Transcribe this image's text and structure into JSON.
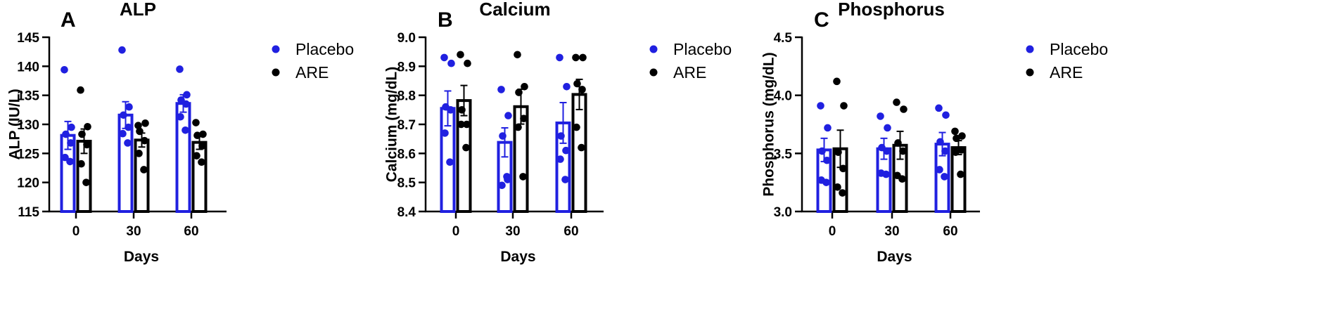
{
  "chart_data": [
    {
      "type": "bar",
      "panel": "A",
      "title": "ALP",
      "xlabel": "Days",
      "ylabel": "ALP (IU/L)",
      "categories": [
        "0",
        "30",
        "60"
      ],
      "ylim": [
        115,
        145
      ],
      "yticks": [
        "115",
        "120",
        "125",
        "130",
        "135",
        "140",
        "145"
      ],
      "grid": false,
      "legend_position": "right",
      "series": [
        {
          "name": "Placebo",
          "color": "#2020e0",
          "means": [
            128.1,
            131.6,
            133.6
          ],
          "sem": [
            2.4,
            2.3,
            1.5
          ],
          "points": [
            [
              139.4,
              129.5,
              128.3,
              126.8,
              124.3,
              123.6
            ],
            [
              142.8,
              133.0,
              131.6,
              129.5,
              128.4,
              126.8
            ],
            [
              139.5,
              135.1,
              134.2,
              133.5,
              131.3,
              129.0
            ]
          ]
        },
        {
          "name": "ARE",
          "color": "#000000",
          "means": [
            127.1,
            127.3,
            126.9
          ],
          "sem": [
            2.1,
            1.2,
            1.2
          ],
          "points": [
            [
              135.9,
              129.6,
              128.3,
              126.5,
              123.2,
              120.0
            ],
            [
              129.8,
              130.2,
              128.8,
              127.2,
              125.0,
              122.2
            ],
            [
              130.3,
              128.3,
              128.1,
              126.3,
              124.6,
              123.5
            ]
          ]
        }
      ]
    },
    {
      "type": "bar",
      "panel": "B",
      "title": "Calcium",
      "xlabel": "Days",
      "ylabel": "Calcium (mg/dL)",
      "categories": [
        "0",
        "30",
        "60"
      ],
      "ylim": [
        8.4,
        9.0
      ],
      "yticks": [
        "8.4",
        "8.5",
        "8.6",
        "8.7",
        "8.8",
        "8.9",
        "9.0"
      ],
      "grid": false,
      "legend_position": "right",
      "series": [
        {
          "name": "Placebo",
          "color": "#2020e0",
          "means": [
            8.755,
            8.638,
            8.705
          ],
          "sem": [
            0.06,
            0.05,
            0.07
          ],
          "points": [
            [
              8.93,
              8.91,
              8.76,
              8.75,
              8.67,
              8.57
            ],
            [
              8.82,
              8.73,
              8.66,
              8.51,
              8.49,
              8.52
            ],
            [
              8.93,
              8.83,
              8.66,
              8.61,
              8.58,
              8.51
            ]
          ]
        },
        {
          "name": "ARE",
          "color": "#000000",
          "means": [
            8.782,
            8.761,
            8.803
          ],
          "sem": [
            0.052,
            0.06,
            0.052
          ],
          "points": [
            [
              8.94,
              8.91,
              8.75,
              8.7,
              8.7,
              8.62
            ],
            [
              8.94,
              8.83,
              8.81,
              8.72,
              8.69,
              8.52
            ],
            [
              8.93,
              8.93,
              8.84,
              8.82,
              8.69,
              8.62
            ]
          ]
        }
      ]
    },
    {
      "type": "bar",
      "panel": "C",
      "title": "Phosphorus",
      "xlabel": "Days",
      "ylabel": "Phosphorus (mg/dL)",
      "categories": [
        "0",
        "30",
        "60"
      ],
      "ylim": [
        3.0,
        4.5
      ],
      "yticks": [
        "3.0",
        "3.5",
        "4.0",
        "4.5"
      ],
      "grid": false,
      "legend_position": "right",
      "series": [
        {
          "name": "Placebo",
          "color": "#2020e0",
          "means": [
            3.53,
            3.54,
            3.58
          ],
          "sem": [
            0.1,
            0.09,
            0.1
          ],
          "points": [
            [
              3.91,
              3.72,
              3.52,
              3.44,
              3.27,
              3.25
            ],
            [
              3.82,
              3.72,
              3.55,
              3.52,
              3.33,
              3.32
            ],
            [
              3.89,
              3.83,
              3.6,
              3.52,
              3.36,
              3.3
            ]
          ]
        },
        {
          "name": "ARE",
          "color": "#000000",
          "means": [
            3.54,
            3.57,
            3.55
          ],
          "sem": [
            0.16,
            0.12,
            0.06
          ],
          "points": [
            [
              4.12,
              3.91,
              3.51,
              3.37,
              3.21,
              3.16
            ],
            [
              3.94,
              3.88,
              3.59,
              3.52,
              3.31,
              3.28
            ],
            [
              3.69,
              3.65,
              3.63,
              3.53,
              3.51,
              3.32
            ]
          ]
        }
      ]
    }
  ]
}
